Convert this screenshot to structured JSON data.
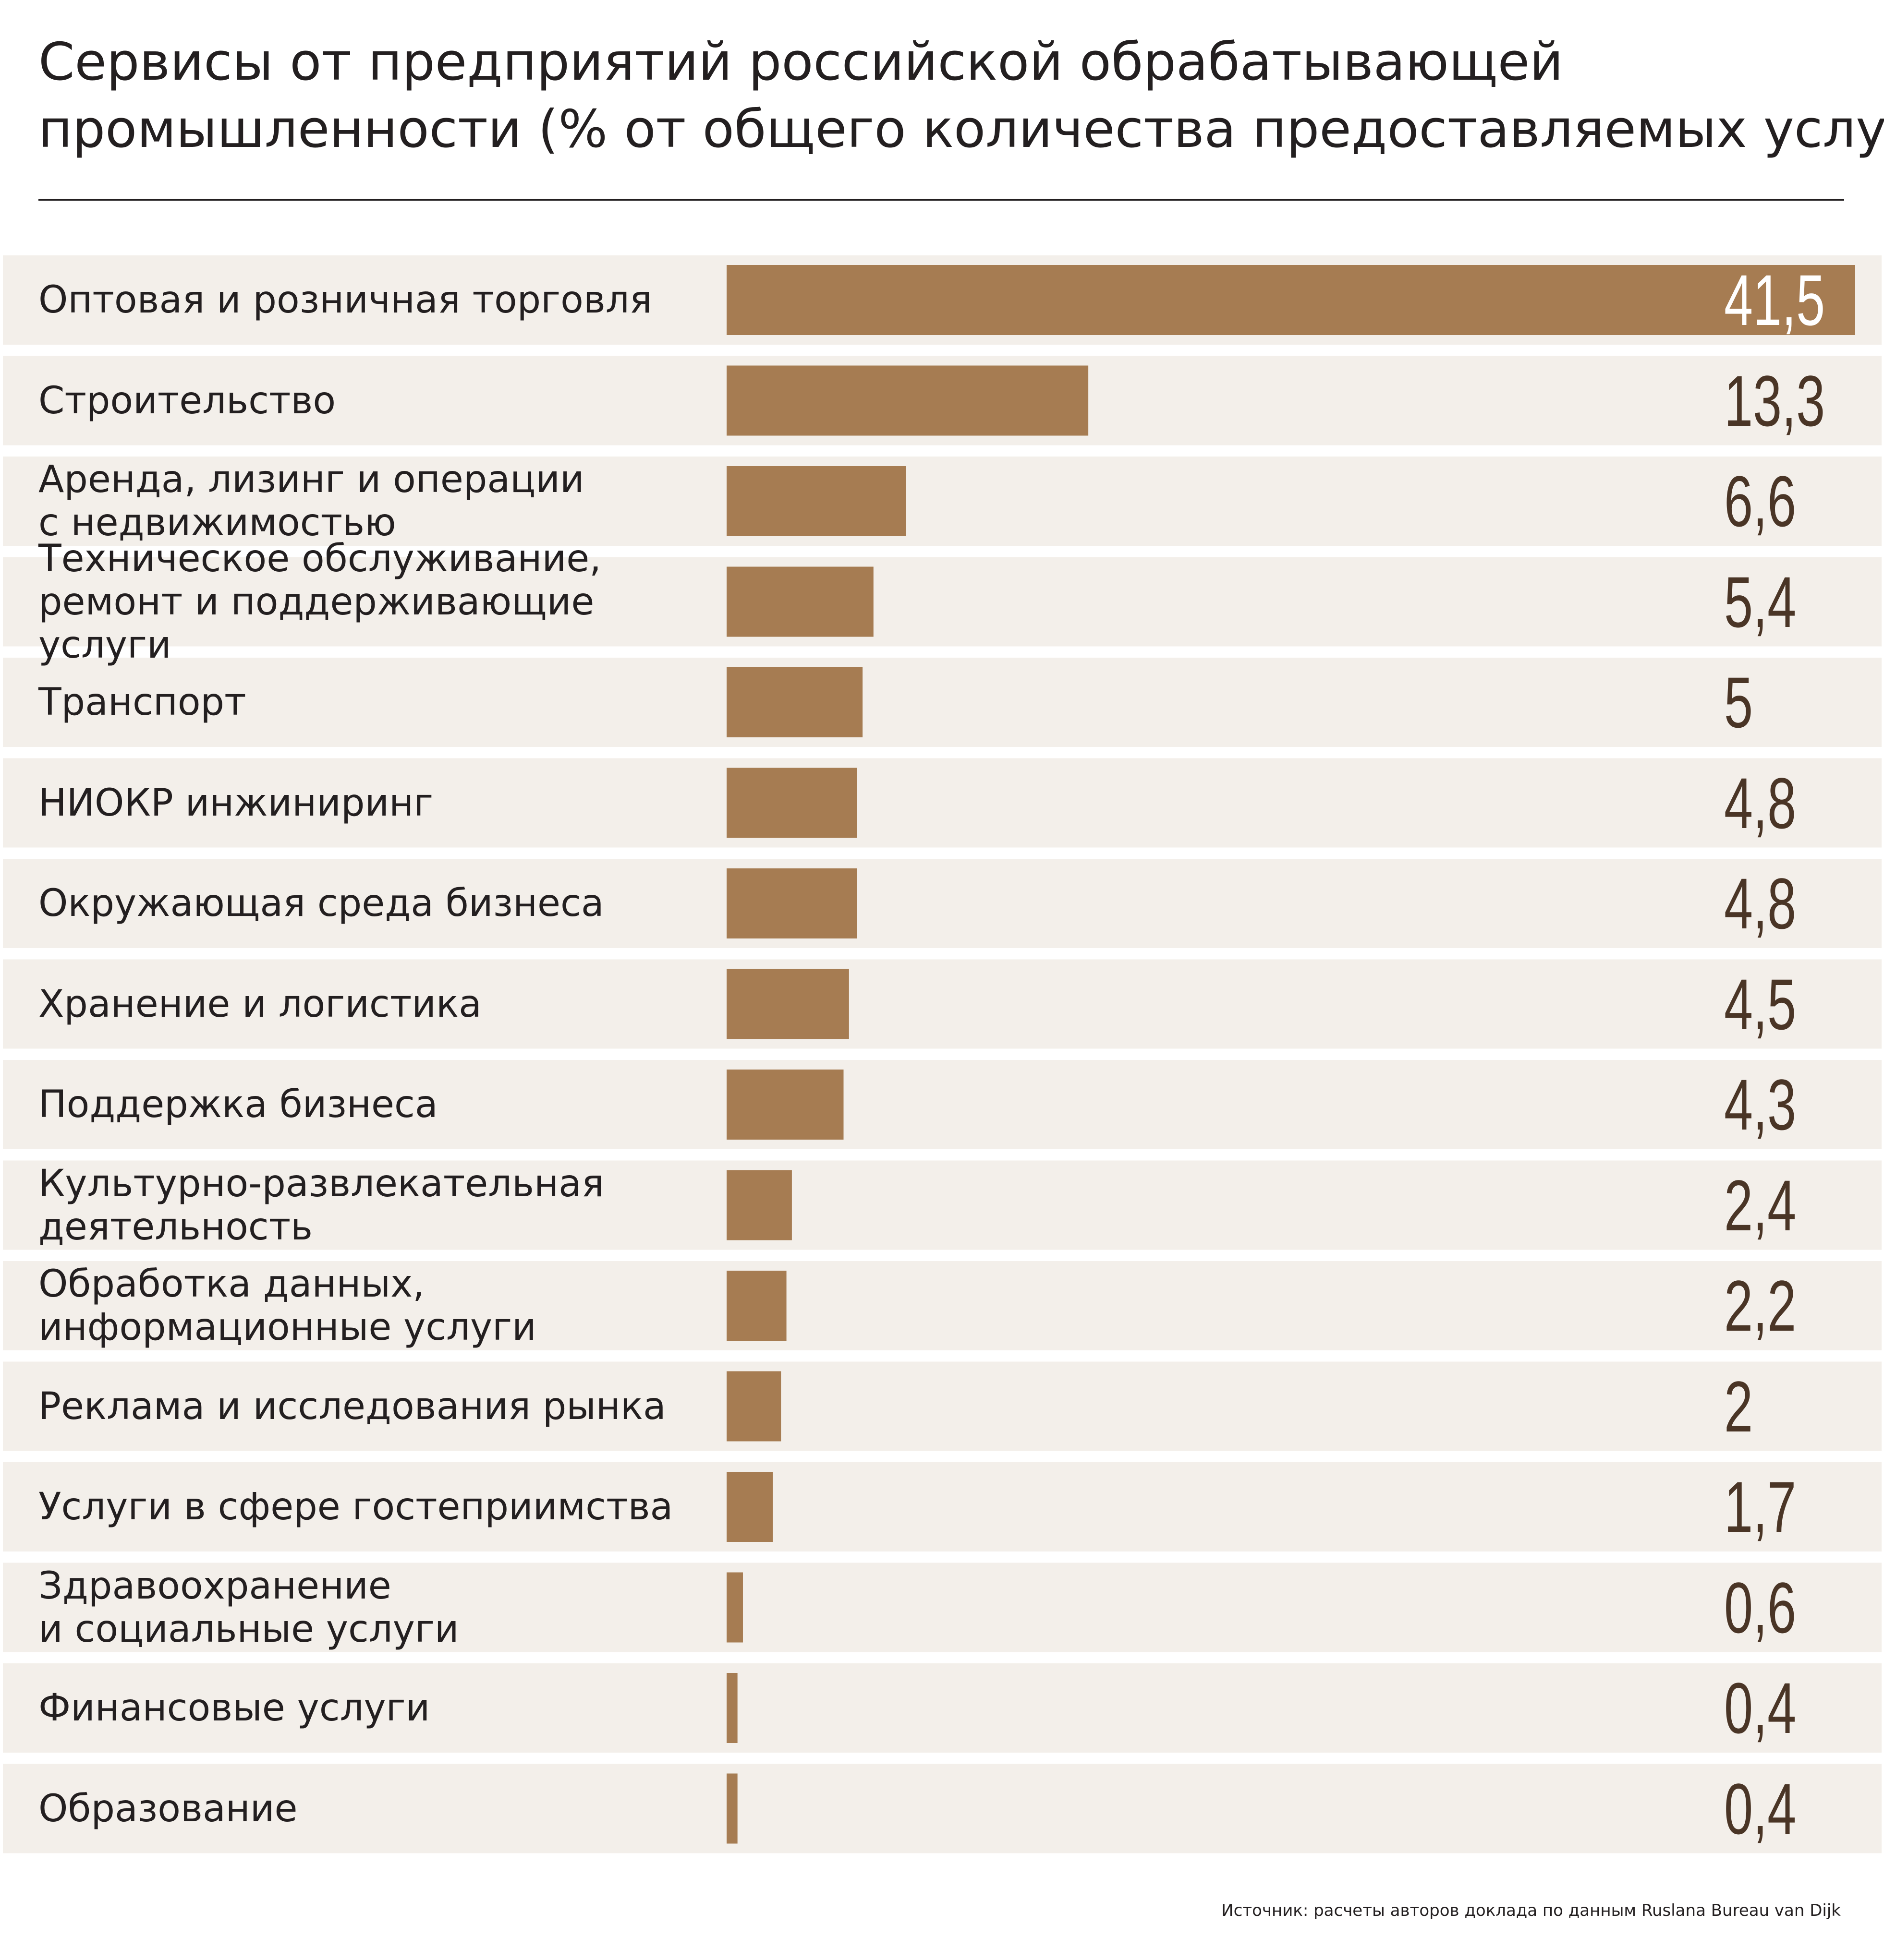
{
  "chart_data": {
    "type": "bar",
    "orientation": "horizontal",
    "title": "Сервисы от предприятий российской обрабатывающей промышленности (% от общего количества предоставляемых услуг)",
    "title_lines": [
      "Сервисы от предприятий российской обрабатывающей",
      "промышленности (% от общего количества предоставляемых услуг)"
    ],
    "categories": [
      "Оптовая и розничная торговля",
      "Строительство",
      "Аренда, лизинг и операции\nс недвижимостью",
      "Техническое обслуживание,\nремонт и поддерживающие услуги",
      "Транспорт",
      "НИОКР инжиниринг",
      "Окружающая среда бизнеса",
      "Хранение и логистика",
      "Поддержка бизнеса",
      "Культурно-развлекательная\nдеятельность",
      "Обработка данных,\nинформационные услуги",
      "Реклама и исследования рынка",
      "Услуги в сфере гостеприимства",
      "Здравоохранение\nи социальные услуги",
      "Финансовые услуги",
      "Образование"
    ],
    "values": [
      41.5,
      13.3,
      6.6,
      5.4,
      5,
      4.8,
      4.8,
      4.5,
      4.3,
      2.4,
      2.2,
      2,
      1.7,
      0.6,
      0.4,
      0.4
    ],
    "value_labels": [
      "41,5",
      "13,3",
      "6,6",
      "5,4",
      "5",
      "4,8",
      "4,8",
      "4,5",
      "4,3",
      "2,4",
      "2,2",
      "2",
      "1,7",
      "0,6",
      "0,4",
      "0,4"
    ],
    "xlim": [
      0,
      41.5
    ],
    "grid": false,
    "legend": "none",
    "colors": {
      "bar": "#a67c52",
      "row_background": "#f3efea",
      "value_text": "#4a3526",
      "value_text_inside": "#ffffff"
    },
    "source": "Источник: расчеты авторов доклада по данным Ruslana Bureau van Dijk"
  }
}
